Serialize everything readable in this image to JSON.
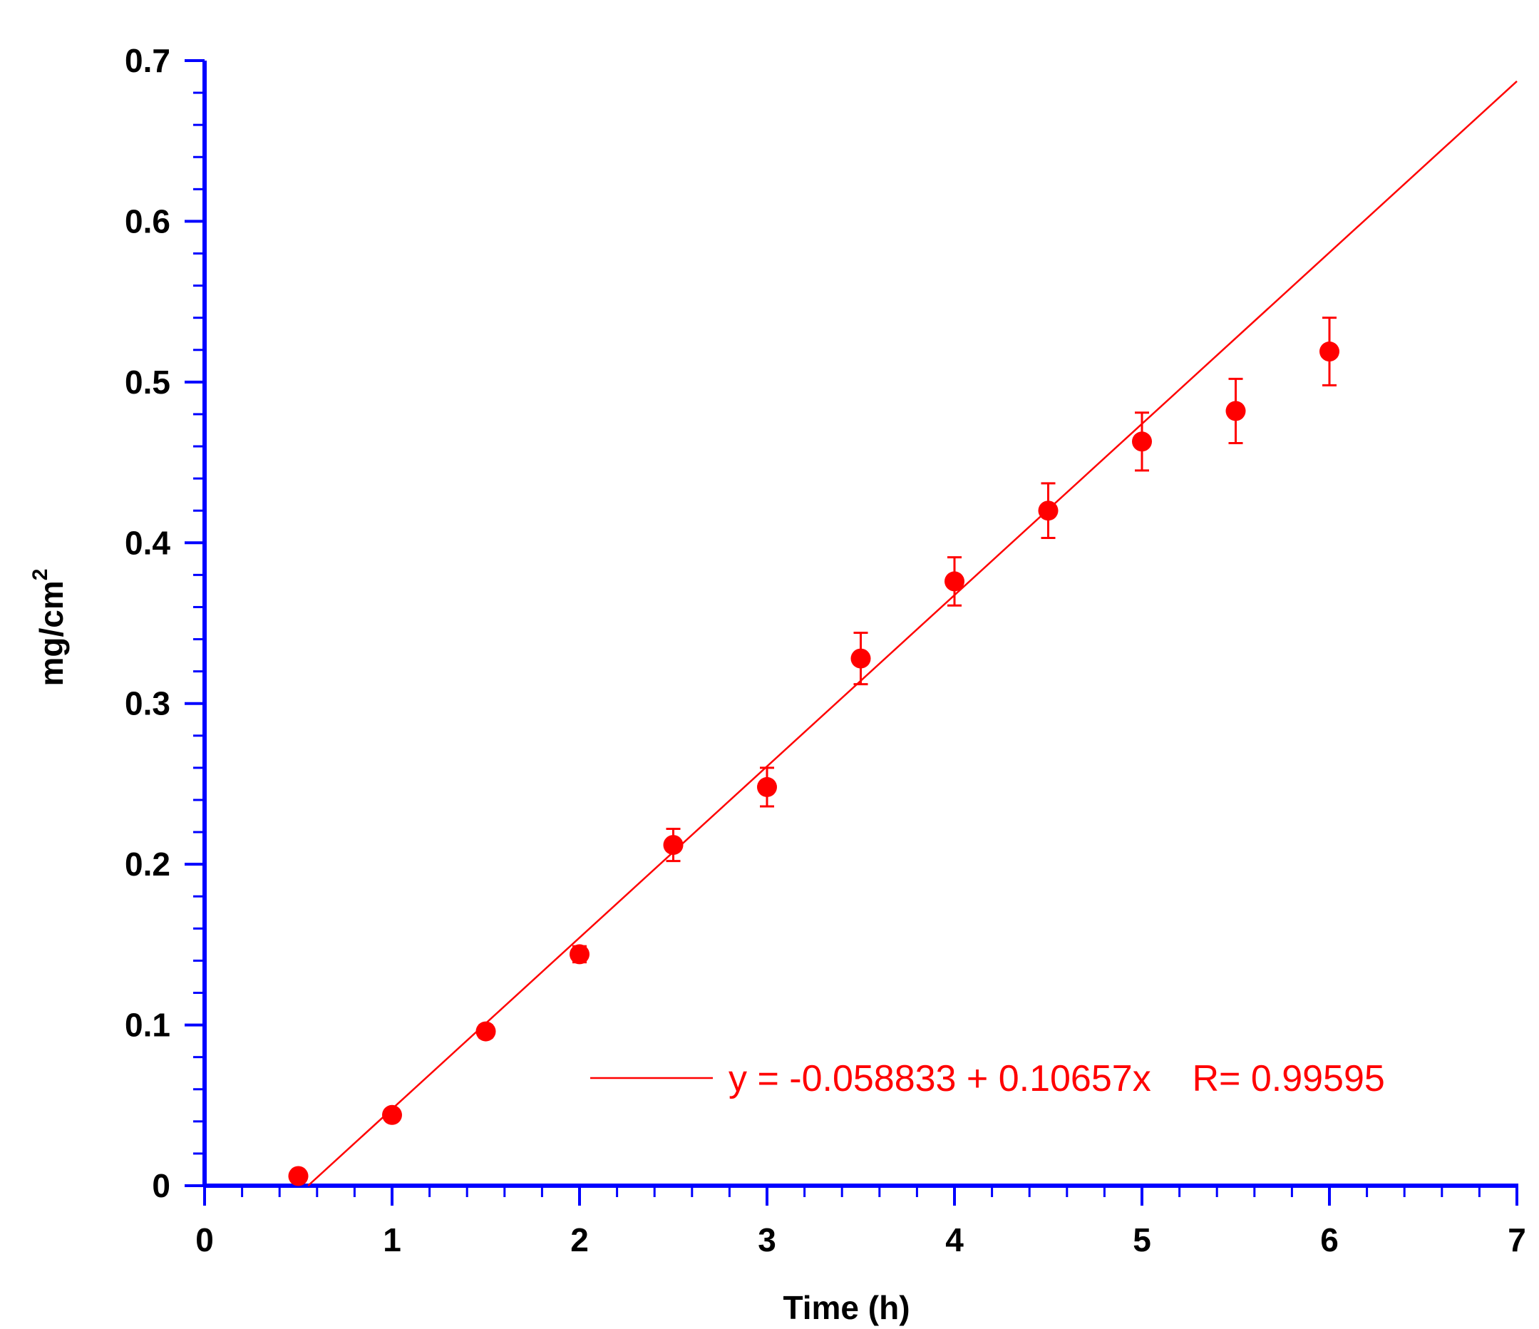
{
  "chart_data": {
    "type": "scatter",
    "xlabel": "Time (h)",
    "ylabel": "mg/cm",
    "ylabel_superscript": "2",
    "xlim": [
      0,
      7
    ],
    "ylim": [
      0,
      0.7
    ],
    "x_ticks": [
      0,
      1,
      2,
      3,
      4,
      5,
      6,
      7
    ],
    "x_tick_labels": [
      "0",
      "1",
      "2",
      "3",
      "4",
      "5",
      "6",
      "7"
    ],
    "y_ticks": [
      0,
      0.1,
      0.2,
      0.3,
      0.4,
      0.5,
      0.6,
      0.7
    ],
    "y_tick_labels": [
      "0",
      "0.1",
      "0.2",
      "0.3",
      "0.4",
      "0.5",
      "0.6",
      "0.7"
    ],
    "grid": false,
    "series": [
      {
        "x": [
          0.5,
          1.0,
          1.5,
          2.0,
          2.5,
          3.0,
          3.5,
          4.0,
          4.5,
          5.0,
          5.5,
          6.0
        ],
        "y": [
          0.006,
          0.044,
          0.096,
          0.144,
          0.212,
          0.248,
          0.328,
          0.376,
          0.42,
          0.463,
          0.482,
          0.519
        ],
        "error": [
          0.003,
          0.003,
          0.004,
          0.005,
          0.01,
          0.012,
          0.016,
          0.015,
          0.017,
          0.018,
          0.02,
          0.021
        ],
        "color": "#ff0000"
      }
    ],
    "fit": {
      "intercept": -0.058833,
      "slope": 0.10657,
      "x_range": [
        0.552,
        7.0
      ],
      "color": "#ff0000",
      "legend_text": "y = -0.058833 + 0.10657x    R= 0.99595",
      "legend_placement": "bottom-right"
    },
    "axis_color": "#0000ff"
  }
}
